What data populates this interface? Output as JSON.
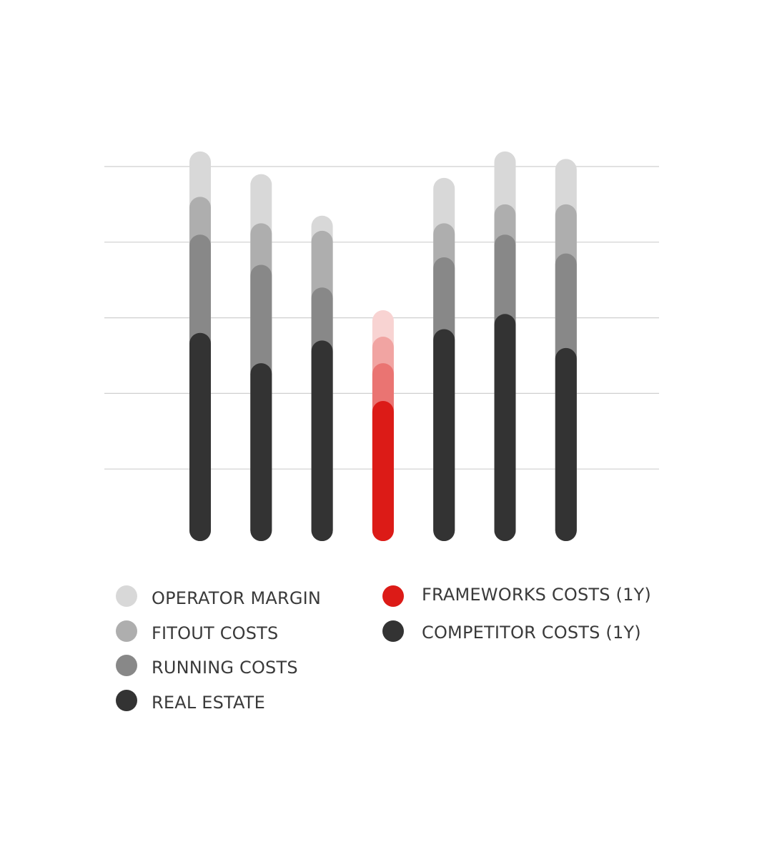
{
  "chart_data": {
    "type": "bar",
    "stacked": true,
    "title": "",
    "xlabel": "",
    "ylabel": "",
    "ylim": [
      0,
      5
    ],
    "grid": true,
    "gridlines": [
      1,
      2,
      3,
      4,
      5
    ],
    "legend_placement": "bottom",
    "bars": [
      {
        "kind": "competitor",
        "segments": [
          2.8,
          1.3,
          0.5,
          0.6
        ]
      },
      {
        "kind": "competitor",
        "segments": [
          2.4,
          1.3,
          0.55,
          0.65
        ]
      },
      {
        "kind": "competitor",
        "segments": [
          2.7,
          0.7,
          0.75,
          0.2
        ]
      },
      {
        "kind": "frameworks",
        "segments": [
          1.9,
          0.5,
          0.35,
          0.35
        ]
      },
      {
        "kind": "competitor",
        "segments": [
          2.85,
          0.95,
          0.45,
          0.6
        ]
      },
      {
        "kind": "competitor",
        "segments": [
          3.05,
          1.05,
          0.4,
          0.7
        ]
      },
      {
        "kind": "competitor",
        "segments": [
          2.6,
          1.25,
          0.65,
          0.6
        ]
      }
    ],
    "legend": {
      "stack": [
        {
          "label": "OPERATOR MARGIN",
          "color": "#d8d8d8"
        },
        {
          "label": "FITOUT COSTS",
          "color": "#aeaeae"
        },
        {
          "label": "RUNNING COSTS",
          "color": "#888888"
        },
        {
          "label": "REAL ESTATE",
          "color": "#333333"
        }
      ],
      "types": [
        {
          "label": "FRAMEWORKS COSTS (1Y)",
          "color": "#dc1b17"
        },
        {
          "label": "COMPETITOR COSTS (1Y)",
          "color": "#333333"
        }
      ]
    },
    "colors": {
      "competitor": [
        "#333333",
        "#888888",
        "#aeaeae",
        "#d8d8d8"
      ],
      "frameworks": [
        "#dc1b17",
        "#ea7472",
        "#f1a4a2",
        "#f8d3d2"
      ],
      "grid": "#cfcfcf"
    }
  }
}
